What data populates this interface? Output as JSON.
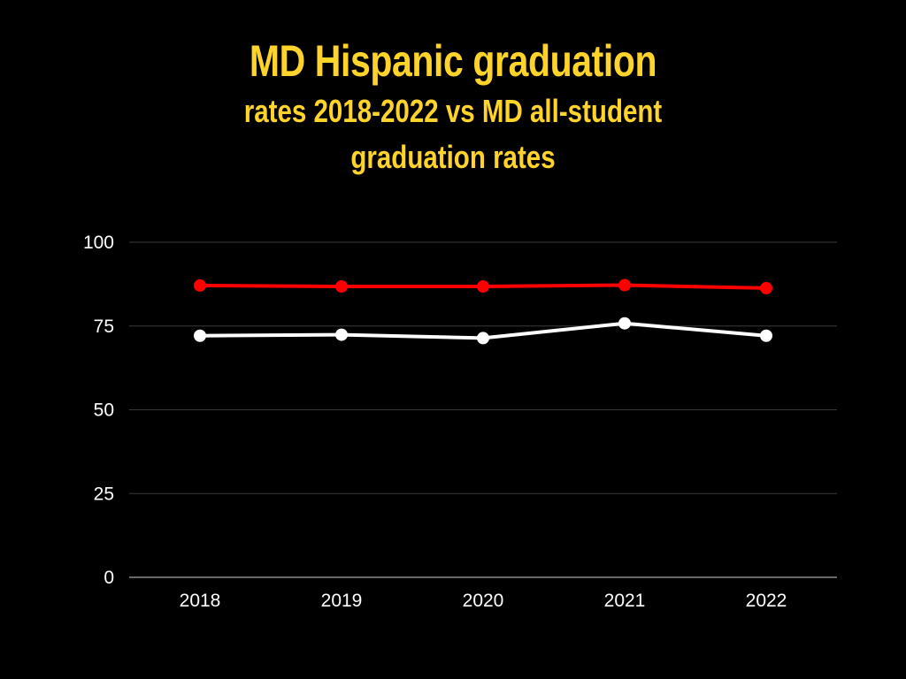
{
  "chart_data": {
    "type": "line",
    "title": "MD Hispanic graduation",
    "subtitle": "rates 2018-2022 vs MD all-student graduation rates",
    "categories": [
      "2018",
      "2019",
      "2020",
      "2021",
      "2022"
    ],
    "series": [
      {
        "values": [
          87.1,
          86.8,
          86.8,
          87.2,
          86.3
        ],
        "color": "#FF0000"
      },
      {
        "values": [
          72.1,
          72.4,
          71.4,
          75.8,
          72.1
        ],
        "color": "#FFFFFF"
      }
    ],
    "ylim": [
      0,
      100
    ],
    "yticks": [
      "0",
      "25",
      "50",
      "75",
      "100"
    ],
    "grid": true,
    "legend": "none",
    "xlabel": "",
    "ylabel": ""
  },
  "colors": {
    "background": "#000000",
    "title": "#FFD42A",
    "gridline": "#3A3A3A",
    "axis": "#8A8A8A",
    "text": "#FFFFFF"
  }
}
